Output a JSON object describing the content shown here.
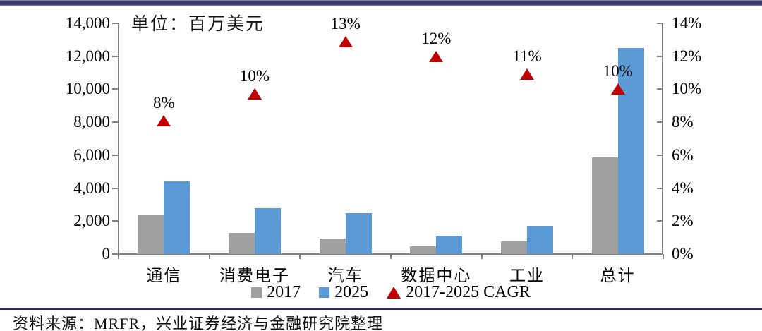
{
  "chart_data": {
    "type": "bar",
    "unit_label": "单位：百万美元",
    "categories": [
      "通信",
      "消费电子",
      "汽车",
      "数据中心",
      "工业",
      "总计"
    ],
    "series": [
      {
        "name": "2017",
        "type": "bar",
        "axis": "left",
        "color": "#A0A0A0",
        "values": [
          2400,
          1300,
          950,
          450,
          750,
          5850
        ]
      },
      {
        "name": "2025",
        "type": "bar",
        "axis": "left",
        "color": "#5B9AD5",
        "values": [
          4400,
          2800,
          2500,
          1100,
          1700,
          12500
        ]
      },
      {
        "name": "2017-2025 CAGR",
        "type": "point",
        "axis": "right",
        "color": "#C00000",
        "values": [
          8.1,
          9.7,
          12.9,
          12.0,
          10.9,
          10.0
        ],
        "labels": [
          "8%",
          "10%",
          "13%",
          "12%",
          "11%",
          "10%"
        ]
      }
    ],
    "left_axis": {
      "min": 0,
      "max": 14000,
      "step": 2000,
      "tick_labels": [
        "0",
        "2,000",
        "4,000",
        "6,000",
        "8,000",
        "10,000",
        "12,000",
        "14,000"
      ]
    },
    "right_axis": {
      "min": 0,
      "max": 14,
      "step": 2,
      "tick_labels": [
        "0%",
        "2%",
        "4%",
        "6%",
        "8%",
        "10%",
        "12%",
        "14%"
      ]
    },
    "legend_position": "bottom",
    "grid": false
  },
  "legend": {
    "items": [
      {
        "label": "2017",
        "marker": "square",
        "color": "#A0A0A0"
      },
      {
        "label": "2025",
        "marker": "square",
        "color": "#5B9AD5"
      },
      {
        "label": "2017-2025 CAGR",
        "marker": "triangle",
        "color": "#C00000"
      }
    ]
  },
  "footer": {
    "source_text": "资料来源：MRFR，兴业证券经济与金融研究院整理"
  }
}
